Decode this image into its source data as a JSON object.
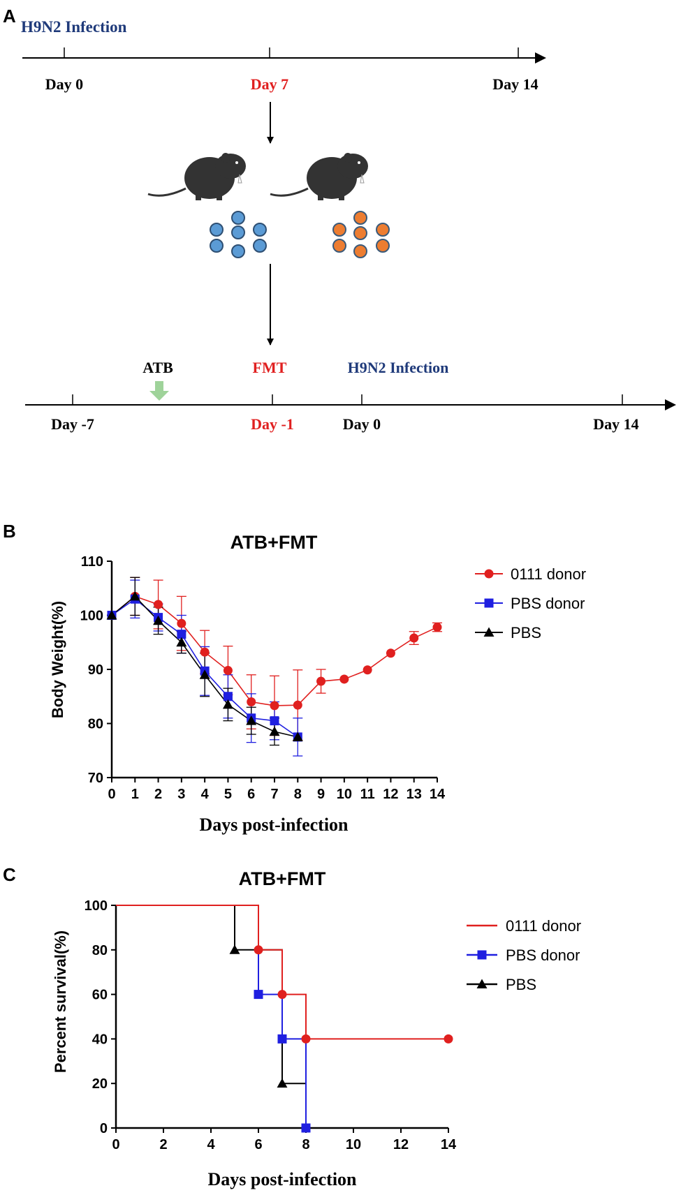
{
  "panel_a": {
    "letter": "A",
    "top_timeline": {
      "title": "H9N2 Infection",
      "labels": [
        "Day 0",
        "Day 7",
        "Day 14"
      ]
    },
    "bottom_timeline": {
      "events": [
        "ATB",
        "FMT",
        "H9N2 Infection"
      ],
      "labels": [
        "Day -7",
        "Day -1",
        "Day 0",
        "Day 14"
      ]
    },
    "colors": {
      "navy": "#1f3a7a",
      "red": "#e02020",
      "blue_dot": "#5b9bd5",
      "orange_dot": "#ed7d31",
      "green_arrow": "#9fd39a"
    }
  },
  "chart_data": [
    {
      "panel": "B",
      "type": "line",
      "title": "ATB+FMT",
      "xlabel": "Days post-infection",
      "ylabel": "Body Weight(%)",
      "xlim": [
        0,
        14
      ],
      "ylim": [
        70,
        110
      ],
      "xticks": [
        0,
        1,
        2,
        3,
        4,
        5,
        6,
        7,
        8,
        9,
        10,
        11,
        12,
        13,
        14
      ],
      "yticks": [
        70,
        80,
        90,
        100,
        110
      ],
      "legend": "top-right",
      "series": [
        {
          "name": "0111 donor",
          "color": "#e0201f",
          "marker": "circle",
          "x": [
            0,
            1,
            2,
            3,
            4,
            5,
            6,
            7,
            8,
            9,
            10,
            11,
            12,
            13,
            14
          ],
          "y": [
            100,
            103.5,
            102,
            98.5,
            93.2,
            89.8,
            84,
            83.3,
            83.4,
            87.8,
            88.2,
            89.9,
            93,
            95.8,
            97.8
          ],
          "err": [
            0,
            3.5,
            4.5,
            5,
            4,
            4.5,
            5,
            5.5,
            6.5,
            2.2,
            0,
            0,
            0,
            1.2,
            0.8
          ]
        },
        {
          "name": "PBS donor",
          "color": "#1f1fe0",
          "marker": "square",
          "x": [
            0,
            1,
            2,
            3,
            4,
            5,
            6,
            7,
            8
          ],
          "y": [
            100,
            103,
            99.6,
            96.5,
            89.7,
            85,
            81,
            80.5,
            77.5
          ],
          "err": [
            0,
            3.5,
            2.5,
            3.5,
            4.5,
            4,
            4.5,
            3.5,
            3.5
          ]
        },
        {
          "name": "PBS",
          "color": "#000000",
          "marker": "triangle",
          "x": [
            0,
            1,
            2,
            3,
            4,
            5,
            6,
            7,
            8
          ],
          "y": [
            100,
            103.5,
            99,
            95,
            89,
            83.5,
            80.5,
            78.5,
            77.5
          ],
          "err": [
            0,
            3.5,
            2.5,
            2,
            4,
            3,
            2.5,
            2.5,
            0
          ]
        }
      ]
    },
    {
      "panel": "C",
      "type": "line",
      "title": "ATB+FMT",
      "xlabel": "Days post-infection",
      "ylabel": "Percent survival(%)",
      "xlim": [
        0,
        14
      ],
      "ylim": [
        0,
        100
      ],
      "xticks": [
        0,
        2,
        4,
        6,
        8,
        10,
        12,
        14
      ],
      "yticks": [
        0,
        20,
        40,
        60,
        80,
        100
      ],
      "legend": "top-right",
      "series": [
        {
          "name": "0111 donor",
          "color": "#e0201f",
          "marker": "circle",
          "steps": [
            [
              0,
              100
            ],
            [
              6,
              80
            ],
            [
              7,
              60
            ],
            [
              8,
              40
            ],
            [
              14,
              40
            ]
          ],
          "points": [
            [
              6,
              80
            ],
            [
              7,
              60
            ],
            [
              8,
              40
            ],
            [
              14,
              40
            ]
          ]
        },
        {
          "name": "PBS donor",
          "color": "#1f1fe0",
          "marker": "square",
          "steps": [
            [
              0,
              100
            ],
            [
              6,
              60
            ],
            [
              7,
              40
            ],
            [
              8,
              0
            ]
          ],
          "points": [
            [
              6,
              60
            ],
            [
              7,
              40
            ],
            [
              8,
              0
            ]
          ]
        },
        {
          "name": "PBS",
          "color": "#000000",
          "marker": "triangle",
          "steps": [
            [
              0,
              100
            ],
            [
              5,
              80
            ],
            [
              7,
              20
            ],
            [
              8,
              0
            ]
          ],
          "points": [
            [
              5,
              80
            ],
            [
              7,
              20
            ]
          ]
        }
      ]
    }
  ]
}
